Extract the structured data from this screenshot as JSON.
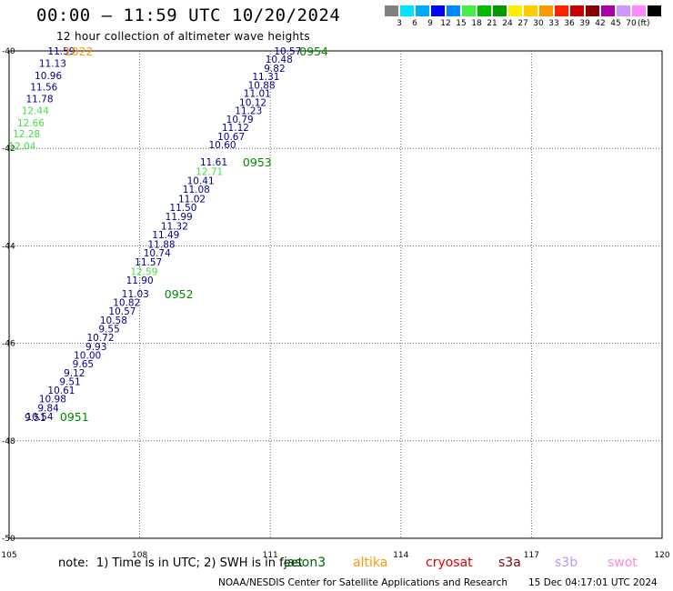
{
  "header": {
    "title": "00:00 – 11:59 UTC 10/20/2024",
    "subtitle": "12 hour collection of altimeter wave heights"
  },
  "legend": {
    "colors": [
      "#808080",
      "#00e5ff",
      "#00aaff",
      "#0000ff",
      "#0088ff",
      "#44ee44",
      "#00bb00",
      "#009900",
      "#ffee00",
      "#ffcc00",
      "#ff9900",
      "#ff2200",
      "#cc0000",
      "#880000",
      "#aa00aa",
      "#cc99ff",
      "#ff88ff",
      "#000000"
    ],
    "labels": [
      "3",
      "6",
      "9",
      "12",
      "15",
      "18",
      "21",
      "24",
      "27",
      "30",
      "33",
      "36",
      "39",
      "42",
      "45",
      "70"
    ],
    "unit": "(ft)"
  },
  "note": "note:  1) Time is in UTC; 2) SWH is in feet",
  "satellites": [
    {
      "name": "jason3",
      "color": "#006600"
    },
    {
      "name": "altika",
      "color": "#ff9900"
    },
    {
      "name": "cryosat",
      "color": "#dd0000"
    },
    {
      "name": "s3a",
      "color": "#880000"
    },
    {
      "name": "s3b",
      "color": "#bb99ee"
    },
    {
      "name": "swot",
      "color": "#ff88dd"
    }
  ],
  "footer": {
    "left": "NOAA/NESDIS Center for Satellite Applications and Research",
    "right": "15 Dec 04:17:01 UTC 2024"
  },
  "chart_data": {
    "type": "scatter",
    "title": "00:00 – 11:59 UTC 10/20/2024",
    "subtitle": "12 hour collection of altimeter wave heights",
    "xlim": [
      105,
      120
    ],
    "ylim": [
      -50,
      -40
    ],
    "x_ticks": [
      105,
      108,
      111,
      114,
      117,
      120
    ],
    "y_ticks": [
      -40,
      -42,
      -44,
      -46,
      -48,
      -50
    ],
    "grid": true,
    "colors": {
      "blue": "#00008b",
      "green": "#44dd44",
      "orange": "#ff9900",
      "darkgreen": "#008800"
    },
    "series": [
      {
        "name": "jason3",
        "points": [
          {
            "x": 106.2,
            "y": -40.0,
            "label": "11.59",
            "color": "blue"
          },
          {
            "x": 106.0,
            "y": -40.25,
            "label": "11.13",
            "color": "blue"
          },
          {
            "x": 105.9,
            "y": -40.5,
            "label": "10.96",
            "color": "blue"
          },
          {
            "x": 105.8,
            "y": -40.74,
            "label": "11.56",
            "color": "blue"
          },
          {
            "x": 105.7,
            "y": -40.98,
            "label": "11.78",
            "color": "blue"
          },
          {
            "x": 105.6,
            "y": -41.22,
            "label": "12.44",
            "color": "green"
          },
          {
            "x": 105.5,
            "y": -41.47,
            "label": "12.66",
            "color": "green"
          },
          {
            "x": 105.4,
            "y": -41.7,
            "label": "12.28",
            "color": "green"
          },
          {
            "x": 105.3,
            "y": -41.95,
            "label": "12.04",
            "color": "green"
          }
        ],
        "tags": [
          {
            "x": 106.6,
            "y": -40.0,
            "label": "1022",
            "color": "orange"
          }
        ]
      },
      {
        "name": "jason3",
        "points": [
          {
            "x": 111.4,
            "y": -40.0,
            "label": "10.57",
            "color": "blue"
          },
          {
            "x": 111.2,
            "y": -40.17,
            "label": "10.48",
            "color": "blue"
          },
          {
            "x": 111.1,
            "y": -40.35,
            "label": "9.82",
            "color": "blue"
          },
          {
            "x": 110.9,
            "y": -40.52,
            "label": "11.31",
            "color": "blue"
          },
          {
            "x": 110.8,
            "y": -40.7,
            "label": "10.88",
            "color": "blue"
          },
          {
            "x": 110.7,
            "y": -40.87,
            "label": "11.01",
            "color": "blue"
          },
          {
            "x": 110.6,
            "y": -41.05,
            "label": "10.12",
            "color": "blue"
          },
          {
            "x": 110.5,
            "y": -41.22,
            "label": "11.23",
            "color": "blue"
          },
          {
            "x": 110.3,
            "y": -41.4,
            "label": "10.79",
            "color": "blue"
          },
          {
            "x": 110.2,
            "y": -41.57,
            "label": "11.12",
            "color": "blue"
          },
          {
            "x": 110.1,
            "y": -41.75,
            "label": "10.67",
            "color": "blue"
          },
          {
            "x": 109.9,
            "y": -41.92,
            "label": "10.60",
            "color": "blue"
          },
          {
            "x": 109.7,
            "y": -42.28,
            "label": "11.61",
            "color": "blue"
          },
          {
            "x": 109.6,
            "y": -42.47,
            "label": "12.71",
            "color": "green"
          },
          {
            "x": 109.4,
            "y": -42.66,
            "label": "10.41",
            "color": "blue"
          },
          {
            "x": 109.3,
            "y": -42.84,
            "label": "11.08",
            "color": "blue"
          },
          {
            "x": 109.2,
            "y": -43.03,
            "label": "11.02",
            "color": "blue"
          },
          {
            "x": 109.0,
            "y": -43.21,
            "label": "11.50",
            "color": "blue"
          },
          {
            "x": 108.9,
            "y": -43.4,
            "label": "11.99",
            "color": "blue"
          },
          {
            "x": 108.8,
            "y": -43.59,
            "label": "11.32",
            "color": "blue"
          },
          {
            "x": 108.6,
            "y": -43.77,
            "label": "11.49",
            "color": "blue"
          },
          {
            "x": 108.5,
            "y": -43.96,
            "label": "11.88",
            "color": "blue"
          },
          {
            "x": 108.4,
            "y": -44.14,
            "label": "10.74",
            "color": "blue"
          },
          {
            "x": 108.2,
            "y": -44.33,
            "label": "11.57",
            "color": "blue"
          },
          {
            "x": 108.1,
            "y": -44.52,
            "label": "12.59",
            "color": "green"
          },
          {
            "x": 108.0,
            "y": -44.7,
            "label": "11.90",
            "color": "blue"
          },
          {
            "x": 107.9,
            "y": -44.98,
            "label": "11.03",
            "color": "blue"
          },
          {
            "x": 107.7,
            "y": -45.16,
            "label": "10.82",
            "color": "blue"
          },
          {
            "x": 107.6,
            "y": -45.34,
            "label": "10.57",
            "color": "blue"
          },
          {
            "x": 107.4,
            "y": -45.52,
            "label": "10.58",
            "color": "blue"
          },
          {
            "x": 107.3,
            "y": -45.7,
            "label": "9.55",
            "color": "blue"
          },
          {
            "x": 107.1,
            "y": -45.88,
            "label": "10.72",
            "color": "blue"
          },
          {
            "x": 107.0,
            "y": -46.06,
            "label": "9.93",
            "color": "blue"
          },
          {
            "x": 106.8,
            "y": -46.24,
            "label": "10.00",
            "color": "blue"
          },
          {
            "x": 106.7,
            "y": -46.42,
            "label": "9.65",
            "color": "blue"
          },
          {
            "x": 106.5,
            "y": -46.6,
            "label": "9.12",
            "color": "blue"
          },
          {
            "x": 106.4,
            "y": -46.78,
            "label": "9.51",
            "color": "blue"
          },
          {
            "x": 106.2,
            "y": -46.96,
            "label": "10.61",
            "color": "blue"
          },
          {
            "x": 106.0,
            "y": -47.14,
            "label": "10.98",
            "color": "blue"
          },
          {
            "x": 105.9,
            "y": -47.32,
            "label": "9.84",
            "color": "blue"
          },
          {
            "x": 105.7,
            "y": -47.5,
            "label": "10.54",
            "color": "blue"
          },
          {
            "x": 105.6,
            "y": -47.52,
            "label": "9.51",
            "color": "blue"
          }
        ],
        "tags": [
          {
            "x": 112.0,
            "y": -40.0,
            "label": "0954",
            "color": "darkgreen"
          },
          {
            "x": 110.7,
            "y": -42.28,
            "label": "0953",
            "color": "darkgreen"
          },
          {
            "x": 108.9,
            "y": -44.98,
            "label": "0952",
            "color": "darkgreen"
          },
          {
            "x": 106.5,
            "y": -47.5,
            "label": "0951",
            "color": "darkgreen"
          }
        ]
      }
    ]
  }
}
